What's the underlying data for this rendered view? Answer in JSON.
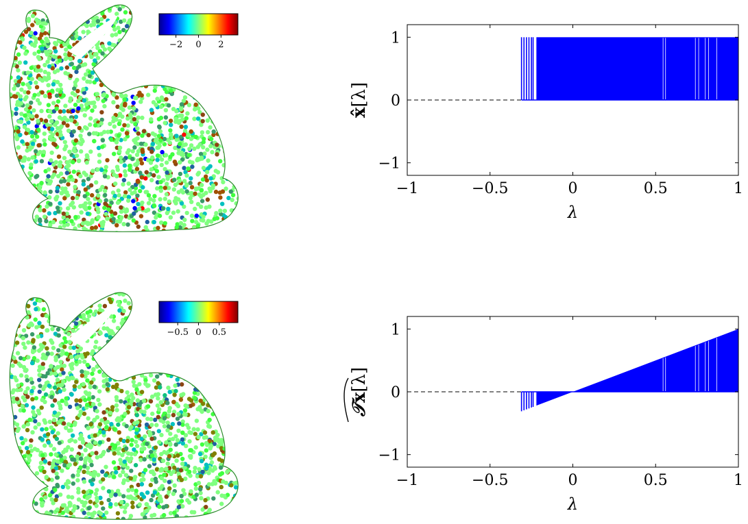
{
  "chart_data": [
    {
      "type": "scatter",
      "subtype": "point-cloud-heat-signal",
      "colormap": "jet",
      "colorbar": {
        "ticks": [
          -2,
          0,
          2
        ],
        "tick_labels": [
          "−2",
          "0",
          "2"
        ],
        "range": [
          -3.5,
          3.5
        ]
      },
      "colors": [
        "#00008f",
        "#0000ff",
        "#0080ff",
        "#00ffff",
        "#80ff80",
        "#ffff00",
        "#ff8000",
        "#ff0000",
        "#800000"
      ]
    },
    {
      "type": "stem",
      "ylabel": "x̂[λ]",
      "xlabel": "λ",
      "xlim": [
        -1,
        1
      ],
      "ylim": [
        -1.2,
        1.2
      ],
      "xticks": [
        -1,
        -0.5,
        0,
        0.5,
        1
      ],
      "xtick_labels": [
        "−1",
        "−0.5",
        "0",
        "0.5",
        "1"
      ],
      "yticks": [
        -1,
        0,
        1
      ],
      "ytick_labels": [
        "−1",
        "0",
        "1"
      ],
      "baseline": {
        "y": 0,
        "style": "dashed",
        "from_x": -1
      },
      "stems": {
        "x_start": -0.31,
        "x_end": 1.0,
        "value": 1,
        "dense_from": -0.22,
        "isolated_x": [
          -0.31,
          -0.295,
          -0.28,
          -0.265,
          -0.25,
          -0.24
        ]
      },
      "color": "#0000ff"
    },
    {
      "type": "scatter",
      "subtype": "point-cloud-heat-signal",
      "colormap": "jet",
      "colorbar": {
        "ticks": [
          -0.5,
          0,
          0.5
        ],
        "tick_labels": [
          "−0.5",
          "0",
          "0.5"
        ],
        "range": [
          -0.95,
          0.95
        ]
      },
      "colors": [
        "#00008f",
        "#0000ff",
        "#0080ff",
        "#00ffff",
        "#80ff80",
        "#ffff00",
        "#ff8000",
        "#ff0000",
        "#800000"
      ]
    },
    {
      "type": "stem",
      "ylabel": "𝒯̲x̂[λ]",
      "ylabel_parts": {
        "script": "𝒯",
        "x": "x",
        "arg": "[λ]"
      },
      "xlabel": "λ",
      "xlim": [
        -1,
        1
      ],
      "ylim": [
        -1.2,
        1.2
      ],
      "xticks": [
        -1,
        -0.5,
        0,
        0.5,
        1
      ],
      "xtick_labels": [
        "−1",
        "−0.5",
        "0",
        "0.5",
        "1"
      ],
      "yticks": [
        -1,
        0,
        1
      ],
      "ytick_labels": [
        "−1",
        "0",
        "1"
      ],
      "baseline": {
        "y": 0,
        "style": "dashed",
        "from_x": -1
      },
      "stems": {
        "x_start": -0.31,
        "x_end": 1.0,
        "value_rule": "y = λ",
        "dense_from": -0.22,
        "isolated_x": [
          -0.31,
          -0.295,
          -0.28,
          -0.265,
          -0.25,
          -0.24
        ]
      },
      "color": "#0000ff"
    }
  ]
}
